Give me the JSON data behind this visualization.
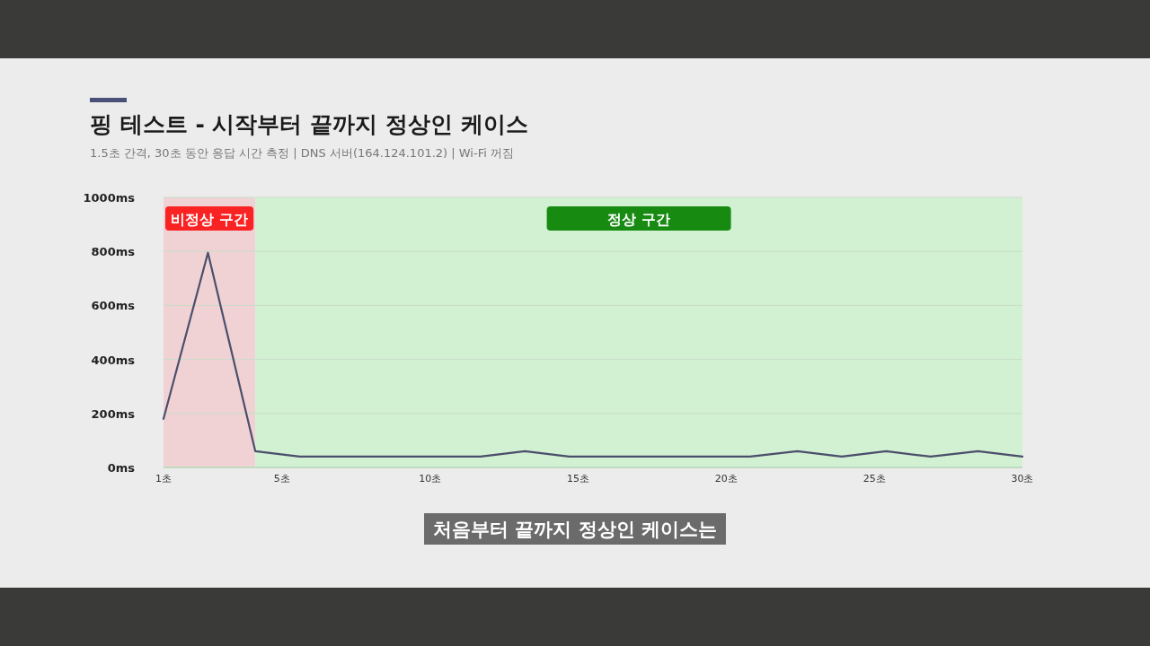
{
  "chart_data": {
    "type": "line",
    "title": "핑 테스트 - 시작부터 끝까지 정상인 케이스",
    "subtitle": "1.5초 간격, 30초 동안 응답 시간 측정 | DNS 서버(164.124.101.2) | Wi-Fi 꺼짐",
    "x": [
      1,
      2.5,
      4.1,
      5.6,
      7.1,
      8.6,
      10.2,
      11.7,
      13.2,
      14.7,
      16.3,
      17.8,
      19.3,
      20.8,
      22.4,
      23.9,
      25.4,
      26.9,
      28.5,
      30
    ],
    "series": [
      {
        "color": "#4b4f6b",
        "values": [
          180,
          795,
          60,
          40,
          40,
          40,
          40,
          40,
          60,
          40,
          40,
          40,
          40,
          40,
          60,
          40,
          60,
          40,
          60,
          40
        ]
      }
    ],
    "xlim": [
      1,
      30
    ],
    "ylim": [
      0,
      1000
    ],
    "xticks": [
      {
        "value": 1,
        "label": "1초"
      },
      {
        "value": 5,
        "label": "5초"
      },
      {
        "value": 10,
        "label": "10초"
      },
      {
        "value": 15,
        "label": "15초"
      },
      {
        "value": 20,
        "label": "20초"
      },
      {
        "value": 25,
        "label": "25초"
      },
      {
        "value": 30,
        "label": "30초"
      }
    ],
    "yticks": [
      {
        "value": 0,
        "label": "0ms"
      },
      {
        "value": 200,
        "label": "200ms"
      },
      {
        "value": 400,
        "label": "400ms"
      },
      {
        "value": 600,
        "label": "600ms"
      },
      {
        "value": 800,
        "label": "800ms"
      },
      {
        "value": 1000,
        "label": "1000ms"
      }
    ],
    "bands": [
      {
        "axis": "x",
        "from": 1,
        "to": 4.1,
        "label": "비정상 구간",
        "color": "#f0d2d4"
      },
      {
        "axis": "x",
        "from": 4.1,
        "to": 30,
        "label": "정상 구간",
        "color": "#d2f0d2"
      }
    ],
    "grid": "y",
    "marker": "none",
    "line_style": "solid",
    "annotations": [
      "처음부터 끝까지 정상인 케이스는"
    ]
  }
}
